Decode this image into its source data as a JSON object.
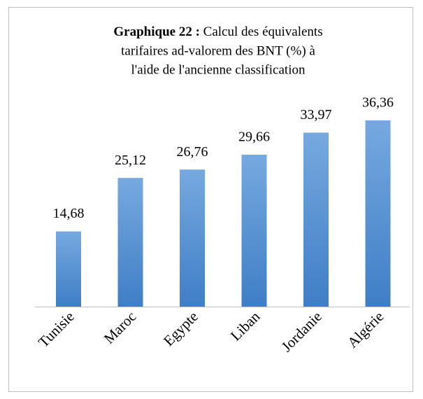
{
  "chart_data": {
    "type": "bar",
    "title": {
      "label": "Graphique 22 :",
      "lines": [
        "Calcul des équivalents",
        "tarifaires ad-valorem  des BNT (%) à",
        "l'aide de l'ancienne classification"
      ]
    },
    "categories": [
      "Tunisie",
      "Maroc",
      "Egypte",
      "Liban",
      "Jordanie",
      "Algérie"
    ],
    "values": [
      14.68,
      25.12,
      26.76,
      29.66,
      33.97,
      36.36
    ],
    "value_labels": [
      "14,68",
      "25,12",
      "26,76",
      "29,66",
      "33,97",
      "36,36"
    ],
    "color": "#5b9bd5"
  }
}
